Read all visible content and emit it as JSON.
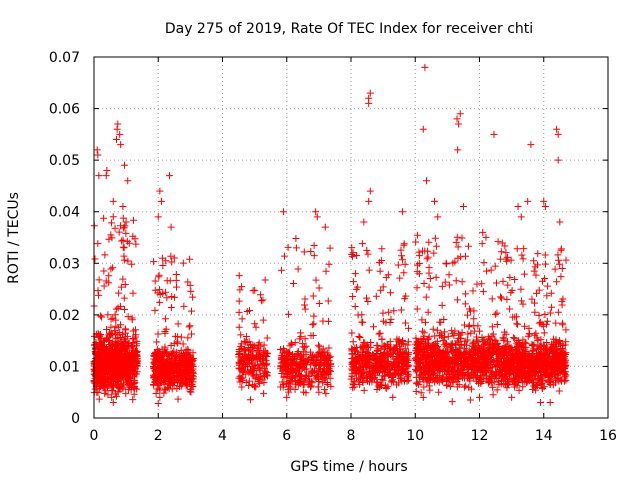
{
  "chart_data": {
    "type": "scatter",
    "title": "Day 275 of 2019, Rate Of TEC Index for receiver chti",
    "xlabel": "GPS time / hours",
    "ylabel": "ROTI / TECUs",
    "xlim": [
      0,
      16
    ],
    "ylim": [
      0,
      0.07
    ],
    "x_ticks": [
      "0",
      "2",
      "4",
      "6",
      "8",
      "10",
      "12",
      "14",
      "16"
    ],
    "y_ticks": [
      "0",
      "0.01",
      "0.02",
      "0.03",
      "0.04",
      "0.05",
      "0.06",
      "0.07"
    ],
    "grid": true,
    "marker": "+",
    "color": "#ff0000",
    "series": [
      {
        "name": "ROTI",
        "clusters": [
          {
            "x": [
              0.0,
              1.35
            ],
            "base": 0.0105,
            "spread": 0.0045,
            "count": 900,
            "tail": 0.04
          },
          {
            "x": [
              1.85,
              3.1
            ],
            "base": 0.0095,
            "spread": 0.0035,
            "count": 520,
            "tail": 0.032
          },
          {
            "x": [
              4.5,
              5.4
            ],
            "base": 0.0105,
            "spread": 0.004,
            "count": 200,
            "tail": 0.028
          },
          {
            "x": [
              5.8,
              7.4
            ],
            "base": 0.01,
            "spread": 0.004,
            "count": 360,
            "tail": 0.035
          },
          {
            "x": [
              8.0,
              9.8
            ],
            "base": 0.0105,
            "spread": 0.004,
            "count": 520,
            "tail": 0.034
          },
          {
            "x": [
              10.0,
              12.8
            ],
            "base": 0.011,
            "spread": 0.0045,
            "count": 950,
            "tail": 0.036
          },
          {
            "x": [
              12.8,
              14.7
            ],
            "base": 0.0105,
            "spread": 0.004,
            "count": 820,
            "tail": 0.033
          }
        ],
        "outliers": [
          [
            0.1,
            0.052
          ],
          [
            0.12,
            0.051
          ],
          [
            0.15,
            0.047
          ],
          [
            0.38,
            0.047
          ],
          [
            0.4,
            0.048
          ],
          [
            0.7,
            0.054
          ],
          [
            0.72,
            0.056
          ],
          [
            0.74,
            0.057
          ],
          [
            0.8,
            0.055
          ],
          [
            0.83,
            0.053
          ],
          [
            0.95,
            0.049
          ],
          [
            1.05,
            0.046
          ],
          [
            0.6,
            0.042
          ],
          [
            0.9,
            0.041
          ],
          [
            1.0,
            0.038
          ],
          [
            2.05,
            0.044
          ],
          [
            2.1,
            0.042
          ],
          [
            2.35,
            0.047
          ],
          [
            2.4,
            0.037
          ],
          [
            2.0,
            0.039
          ],
          [
            5.9,
            0.04
          ],
          [
            6.9,
            0.04
          ],
          [
            6.95,
            0.039
          ],
          [
            7.2,
            0.037
          ],
          [
            6.3,
            0.033
          ],
          [
            8.55,
            0.062
          ],
          [
            8.6,
            0.063
          ],
          [
            8.55,
            0.061
          ],
          [
            8.6,
            0.044
          ],
          [
            8.55,
            0.042
          ],
          [
            8.4,
            0.038
          ],
          [
            9.6,
            0.04
          ],
          [
            10.3,
            0.068
          ],
          [
            10.25,
            0.056
          ],
          [
            10.35,
            0.046
          ],
          [
            10.6,
            0.042
          ],
          [
            11.3,
            0.058
          ],
          [
            11.35,
            0.057
          ],
          [
            11.4,
            0.059
          ],
          [
            11.32,
            0.052
          ],
          [
            11.5,
            0.041
          ],
          [
            12.45,
            0.055
          ],
          [
            13.2,
            0.041
          ],
          [
            13.5,
            0.042
          ],
          [
            13.6,
            0.053
          ],
          [
            14.0,
            0.042
          ],
          [
            14.05,
            0.041
          ],
          [
            14.4,
            0.056
          ],
          [
            14.45,
            0.055
          ],
          [
            14.45,
            0.05
          ],
          [
            14.5,
            0.038
          ],
          [
            13.3,
            0.039
          ],
          [
            10.7,
            0.039
          ],
          [
            12.1,
            0.036
          ]
        ],
        "low_points": [
          [
            0.6,
            0.003
          ],
          [
            0.55,
            0.004
          ],
          [
            2.0,
            0.0028
          ],
          [
            2.05,
            0.004
          ],
          [
            9.3,
            0.004
          ],
          [
            10.25,
            0.004
          ],
          [
            12.0,
            0.004
          ],
          [
            13.0,
            0.004
          ],
          [
            13.9,
            0.003
          ],
          [
            14.2,
            0.003
          ],
          [
            6.0,
            0.004
          ],
          [
            7.0,
            0.005
          ],
          [
            4.6,
            0.006
          ],
          [
            8.1,
            0.006
          ]
        ]
      }
    ]
  }
}
